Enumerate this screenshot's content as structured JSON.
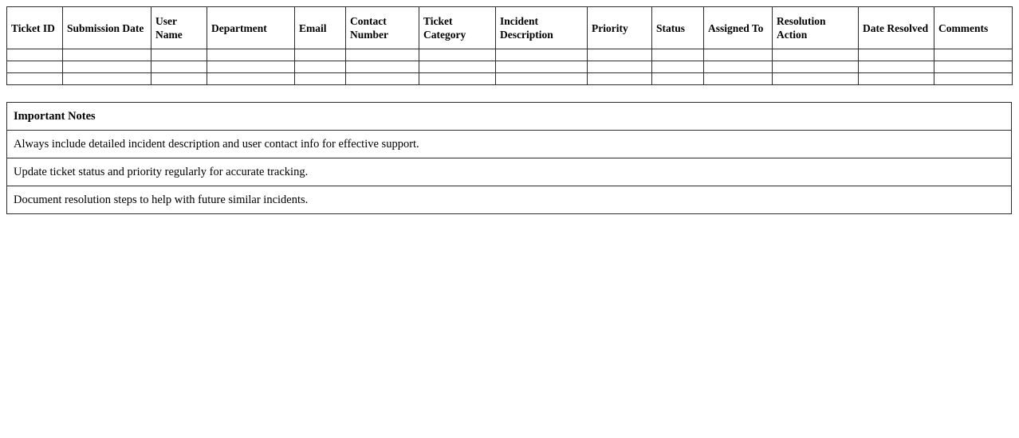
{
  "ticket_table": {
    "columns": [
      "Ticket ID",
      "Submission Date",
      "User Name",
      "Department",
      "Email",
      "Contact Number",
      "Ticket Category",
      "Incident Description",
      "Priority",
      "Status",
      "Assigned To",
      "Resolution Action",
      "Date Resolved",
      "Comments"
    ],
    "empty_row_count": 3
  },
  "notes": {
    "title": "Important Notes",
    "items": [
      "Always include detailed incident description and user contact info for effective support.",
      "Update ticket status and priority regularly for accurate tracking.",
      "Document resolution steps to help with future similar incidents."
    ]
  },
  "colors": {
    "border": "#2b2b2b",
    "background": "#ffffff",
    "text": "#000000"
  }
}
